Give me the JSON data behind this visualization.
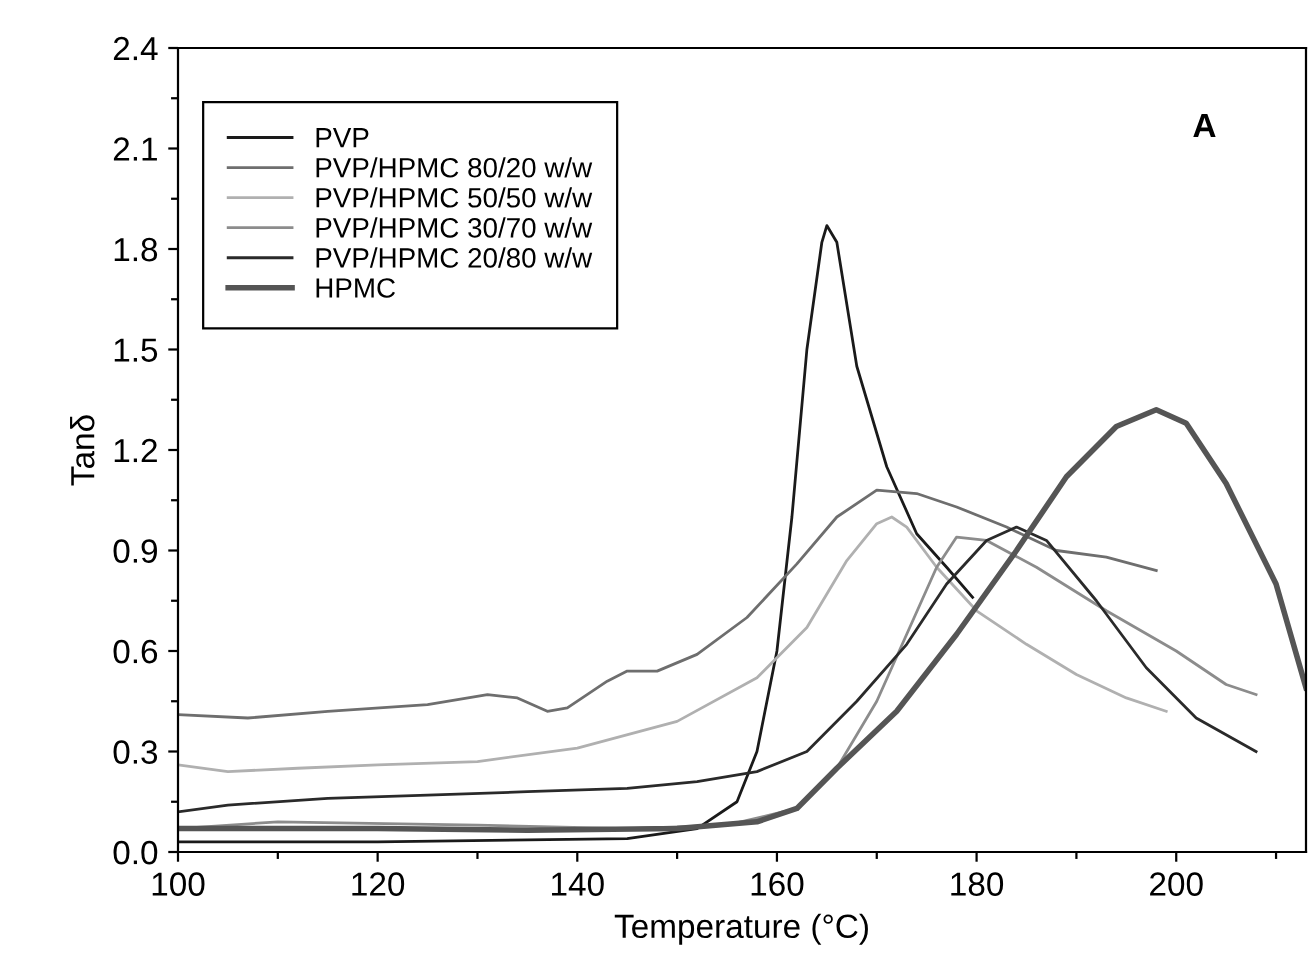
{
  "chart_data": {
    "type": "line",
    "xlabel": "Temperature (°C)",
    "ylabel": "Tanδ",
    "annotations": [
      "A"
    ],
    "xlim": [
      100,
      213
    ],
    "ylim": [
      0,
      2.4
    ],
    "xticks": [
      100,
      {
        "value": 110,
        "label": null
      },
      120,
      {
        "value": 130,
        "label": null
      },
      140,
      {
        "value": 150,
        "label": null
      },
      160,
      {
        "value": 170,
        "label": null
      },
      180,
      {
        "value": 190,
        "label": null
      },
      200,
      {
        "value": 210,
        "label": null
      }
    ],
    "yticks": [
      {
        "value": 0,
        "label": "0.0"
      },
      {
        "value": 0.15,
        "label": null
      },
      0.3,
      {
        "value": 0.45,
        "label": null
      },
      0.6,
      {
        "value": 0.75,
        "label": null
      },
      0.9,
      {
        "value": 1.05,
        "label": null
      },
      1.2,
      {
        "value": 1.35,
        "label": null
      },
      1.5,
      {
        "value": 1.65,
        "label": null
      },
      1.8,
      {
        "value": 1.95,
        "label": null
      },
      2.1,
      {
        "value": 2.25,
        "label": null
      },
      2.4
    ],
    "grid": false,
    "legend": "top left",
    "marker": "none",
    "line_style": "solid",
    "series": [
      {
        "name": "PVP",
        "color": "#1a1a1a",
        "x": [
          100,
          120,
          145,
          152,
          156,
          158,
          160,
          161.5,
          163,
          164.5,
          165,
          166,
          168,
          171,
          174,
          177,
          179.6
        ],
        "values": [
          0.03,
          0.03,
          0.04,
          0.07,
          0.15,
          0.3,
          0.6,
          1.0,
          1.5,
          1.82,
          1.87,
          1.82,
          1.45,
          1.15,
          0.95,
          0.85,
          0.76
        ]
      },
      {
        "name": "PVP/HPMC 80/20 w/w",
        "color": "#6e6e6e",
        "x": [
          100,
          107,
          115,
          125,
          131,
          134,
          137,
          139,
          143,
          145,
          148,
          152,
          157,
          162,
          166,
          170,
          174,
          178,
          183,
          188,
          193,
          198
        ],
        "values": [
          0.41,
          0.4,
          0.42,
          0.44,
          0.47,
          0.46,
          0.42,
          0.43,
          0.51,
          0.54,
          0.54,
          0.59,
          0.7,
          0.86,
          1.0,
          1.08,
          1.07,
          1.03,
          0.97,
          0.9,
          0.88,
          0.84
        ]
      },
      {
        "name": "PVP/HPMC 50/50 w/w",
        "color": "#b0b0b0",
        "x": [
          100,
          105,
          112,
          120,
          130,
          140,
          150,
          158,
          163,
          167,
          170,
          171.5,
          173,
          176,
          180,
          185,
          190,
          195,
          199
        ],
        "values": [
          0.26,
          0.24,
          0.25,
          0.26,
          0.27,
          0.31,
          0.39,
          0.52,
          0.67,
          0.87,
          0.98,
          1.0,
          0.97,
          0.85,
          0.72,
          0.62,
          0.53,
          0.46,
          0.42
        ]
      },
      {
        "name": "PVP/HPMC 30/70 w/w",
        "color": "#8c8c8c",
        "x": [
          100,
          110,
          130,
          145,
          155,
          162,
          166,
          170,
          173,
          176,
          178,
          181,
          186,
          193,
          200,
          205,
          208
        ],
        "values": [
          0.07,
          0.09,
          0.08,
          0.07,
          0.08,
          0.13,
          0.25,
          0.45,
          0.65,
          0.85,
          0.94,
          0.93,
          0.85,
          0.72,
          0.6,
          0.5,
          0.47
        ]
      },
      {
        "name": "PVP/HPMC 20/80 w/w",
        "color": "#2a2a2a",
        "x": [
          100,
          105,
          115,
          125,
          135,
          145,
          152,
          158,
          163,
          168,
          173,
          177,
          181,
          184,
          187,
          192,
          197,
          202,
          208
        ],
        "values": [
          0.12,
          0.14,
          0.16,
          0.17,
          0.18,
          0.19,
          0.21,
          0.24,
          0.3,
          0.45,
          0.62,
          0.8,
          0.93,
          0.97,
          0.93,
          0.75,
          0.55,
          0.4,
          0.3
        ]
      },
      {
        "name": "HPMC",
        "color": "#555555",
        "x": [
          100,
          120,
          135,
          150,
          158,
          162,
          166,
          172,
          178,
          184,
          189,
          194,
          198,
          201,
          205,
          210,
          213
        ],
        "values": [
          0.07,
          0.07,
          0.065,
          0.07,
          0.09,
          0.13,
          0.25,
          0.42,
          0.65,
          0.9,
          1.12,
          1.27,
          1.32,
          1.28,
          1.1,
          0.8,
          0.49
        ]
      }
    ]
  }
}
